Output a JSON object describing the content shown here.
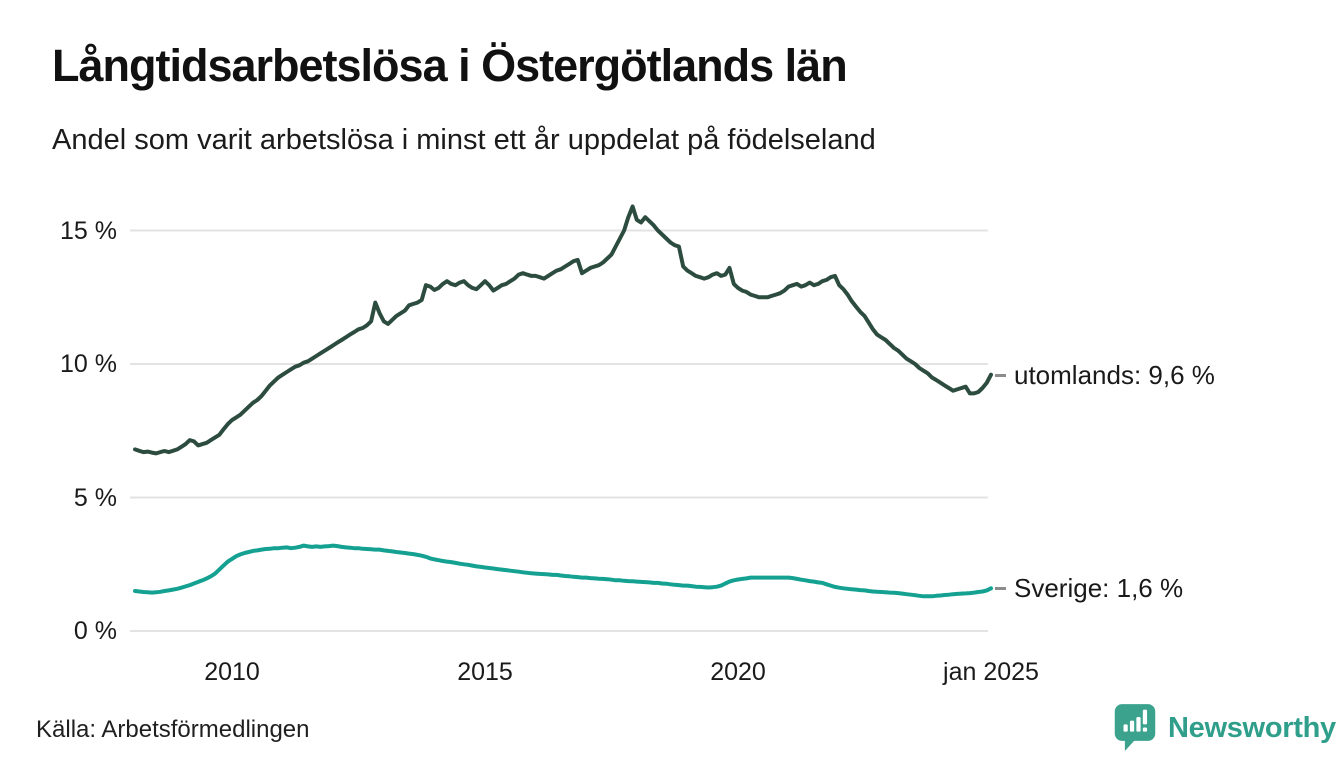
{
  "header": {
    "title": "Långtidsarbetslösa i Östergötlands län",
    "subtitle": "Andel som varit arbetslösa i minst ett år uppdelat på födelseland"
  },
  "footer": {
    "source": "Källa: Arbetsförmedlingen",
    "brand": "Newsworthy"
  },
  "colors": {
    "utomlands_line": "#2d4c40",
    "sverige_line": "#14a191",
    "grid": "#e3e3e3",
    "text": "#1a1a1a",
    "connector_dash": "#8c8c8c",
    "brand_teal": "#2f9e8a",
    "brand_bubble": "#3ba28e"
  },
  "chart_data": {
    "type": "line",
    "title": "Långtidsarbetslösa i Östergötlands län",
    "subtitle": "Andel som varit arbetslösa i minst ett år uppdelat på födelseland",
    "xlabel": "",
    "ylabel": "",
    "unit": "%",
    "grid": "horizontal",
    "legend_position": "right-end-labels",
    "ylim": [
      0,
      16.5
    ],
    "x_range": [
      2008.083,
      2025.0
    ],
    "x_step": "monthly",
    "y_ticks": [
      {
        "value": 15,
        "label": "15 %"
      },
      {
        "value": 10,
        "label": "10 %"
      },
      {
        "value": 5,
        "label": "5 %"
      },
      {
        "value": 0,
        "label": "0 %"
      }
    ],
    "x_ticks": [
      {
        "value": 2010,
        "label": "2010"
      },
      {
        "value": 2015,
        "label": "2015"
      },
      {
        "value": 2020,
        "label": "2020"
      },
      {
        "value": 2025.0,
        "label": "jan 2025"
      }
    ],
    "series": [
      {
        "name": "utomlands",
        "end_label": "utomlands: 9,6 %",
        "last_value_label": "9,6 %",
        "color": "#2d4c40",
        "values": [
          6.8,
          6.75,
          6.7,
          6.72,
          6.68,
          6.65,
          6.7,
          6.74,
          6.7,
          6.75,
          6.8,
          6.9,
          7.0,
          7.15,
          7.1,
          6.95,
          7.0,
          7.05,
          7.15,
          7.25,
          7.35,
          7.55,
          7.75,
          7.9,
          8.0,
          8.1,
          8.25,
          8.4,
          8.55,
          8.65,
          8.8,
          9.0,
          9.2,
          9.35,
          9.5,
          9.6,
          9.7,
          9.8,
          9.9,
          9.95,
          10.05,
          10.1,
          10.2,
          10.3,
          10.4,
          10.5,
          10.6,
          10.7,
          10.8,
          10.9,
          11.0,
          11.1,
          11.2,
          11.3,
          11.35,
          11.45,
          11.6,
          12.3,
          11.9,
          11.6,
          11.5,
          11.65,
          11.8,
          11.9,
          12.0,
          12.2,
          12.25,
          12.3,
          12.4,
          12.95,
          12.9,
          12.77,
          12.85,
          13.0,
          13.1,
          13.0,
          12.95,
          13.05,
          13.1,
          12.95,
          12.85,
          12.8,
          12.95,
          13.1,
          12.95,
          12.75,
          12.85,
          12.95,
          13.0,
          13.1,
          13.2,
          13.35,
          13.4,
          13.35,
          13.3,
          13.3,
          13.25,
          13.2,
          13.3,
          13.4,
          13.5,
          13.55,
          13.65,
          13.75,
          13.85,
          13.9,
          13.4,
          13.5,
          13.6,
          13.65,
          13.7,
          13.8,
          13.95,
          14.1,
          14.4,
          14.7,
          15.0,
          15.5,
          15.9,
          15.4,
          15.3,
          15.5,
          15.35,
          15.2,
          15.0,
          14.85,
          14.7,
          14.55,
          14.45,
          14.4,
          13.65,
          13.5,
          13.4,
          13.3,
          13.25,
          13.2,
          13.25,
          13.35,
          13.4,
          13.3,
          13.35,
          13.6,
          13.0,
          12.85,
          12.75,
          12.7,
          12.6,
          12.55,
          12.5,
          12.5,
          12.5,
          12.55,
          12.6,
          12.65,
          12.75,
          12.9,
          12.95,
          13.0,
          12.9,
          12.95,
          13.05,
          12.95,
          13.0,
          13.1,
          13.15,
          13.25,
          13.3,
          12.95,
          12.8,
          12.6,
          12.35,
          12.15,
          11.95,
          11.8,
          11.55,
          11.3,
          11.1,
          11.0,
          10.9,
          10.75,
          10.6,
          10.5,
          10.35,
          10.2,
          10.1,
          10.0,
          9.85,
          9.75,
          9.65,
          9.5,
          9.4,
          9.3,
          9.2,
          9.1,
          9.0,
          9.05,
          9.1,
          9.15,
          8.9,
          8.9,
          8.95,
          9.1,
          9.3,
          9.6
        ]
      },
      {
        "name": "Sverige",
        "end_label": "Sverige: 1,6 %",
        "last_value_label": "1,6 %",
        "color": "#14a191",
        "values": [
          1.5,
          1.48,
          1.46,
          1.45,
          1.44,
          1.45,
          1.47,
          1.5,
          1.52,
          1.55,
          1.58,
          1.62,
          1.67,
          1.72,
          1.78,
          1.84,
          1.9,
          1.97,
          2.05,
          2.15,
          2.3,
          2.45,
          2.6,
          2.7,
          2.8,
          2.87,
          2.92,
          2.96,
          3.0,
          3.02,
          3.05,
          3.07,
          3.08,
          3.1,
          3.1,
          3.12,
          3.13,
          3.1,
          3.12,
          3.15,
          3.2,
          3.17,
          3.15,
          3.17,
          3.15,
          3.17,
          3.18,
          3.2,
          3.18,
          3.15,
          3.13,
          3.12,
          3.1,
          3.1,
          3.08,
          3.07,
          3.06,
          3.05,
          3.05,
          3.02,
          3.0,
          2.98,
          2.96,
          2.94,
          2.92,
          2.9,
          2.88,
          2.85,
          2.82,
          2.78,
          2.72,
          2.68,
          2.65,
          2.62,
          2.6,
          2.58,
          2.55,
          2.52,
          2.5,
          2.48,
          2.45,
          2.42,
          2.4,
          2.38,
          2.36,
          2.34,
          2.32,
          2.3,
          2.28,
          2.26,
          2.24,
          2.22,
          2.2,
          2.18,
          2.16,
          2.15,
          2.14,
          2.13,
          2.12,
          2.1,
          2.1,
          2.08,
          2.06,
          2.05,
          2.03,
          2.02,
          2.0,
          2.0,
          1.98,
          1.97,
          1.96,
          1.95,
          1.94,
          1.92,
          1.9,
          1.9,
          1.88,
          1.87,
          1.86,
          1.85,
          1.84,
          1.83,
          1.82,
          1.8,
          1.8,
          1.78,
          1.77,
          1.75,
          1.73,
          1.72,
          1.7,
          1.7,
          1.68,
          1.66,
          1.65,
          1.64,
          1.63,
          1.64,
          1.66,
          1.7,
          1.78,
          1.85,
          1.9,
          1.93,
          1.95,
          1.97,
          2.0,
          2.0,
          2.0,
          2.0,
          2.0,
          2.0,
          2.0,
          2.0,
          2.0,
          2.0,
          1.98,
          1.95,
          1.92,
          1.9,
          1.87,
          1.85,
          1.82,
          1.8,
          1.75,
          1.7,
          1.65,
          1.62,
          1.6,
          1.58,
          1.56,
          1.55,
          1.53,
          1.52,
          1.5,
          1.48,
          1.47,
          1.46,
          1.45,
          1.44,
          1.43,
          1.42,
          1.4,
          1.38,
          1.36,
          1.34,
          1.32,
          1.3,
          1.3,
          1.3,
          1.32,
          1.33,
          1.35,
          1.36,
          1.38,
          1.39,
          1.4,
          1.41,
          1.42,
          1.44,
          1.46,
          1.48,
          1.52,
          1.6
        ]
      }
    ]
  }
}
